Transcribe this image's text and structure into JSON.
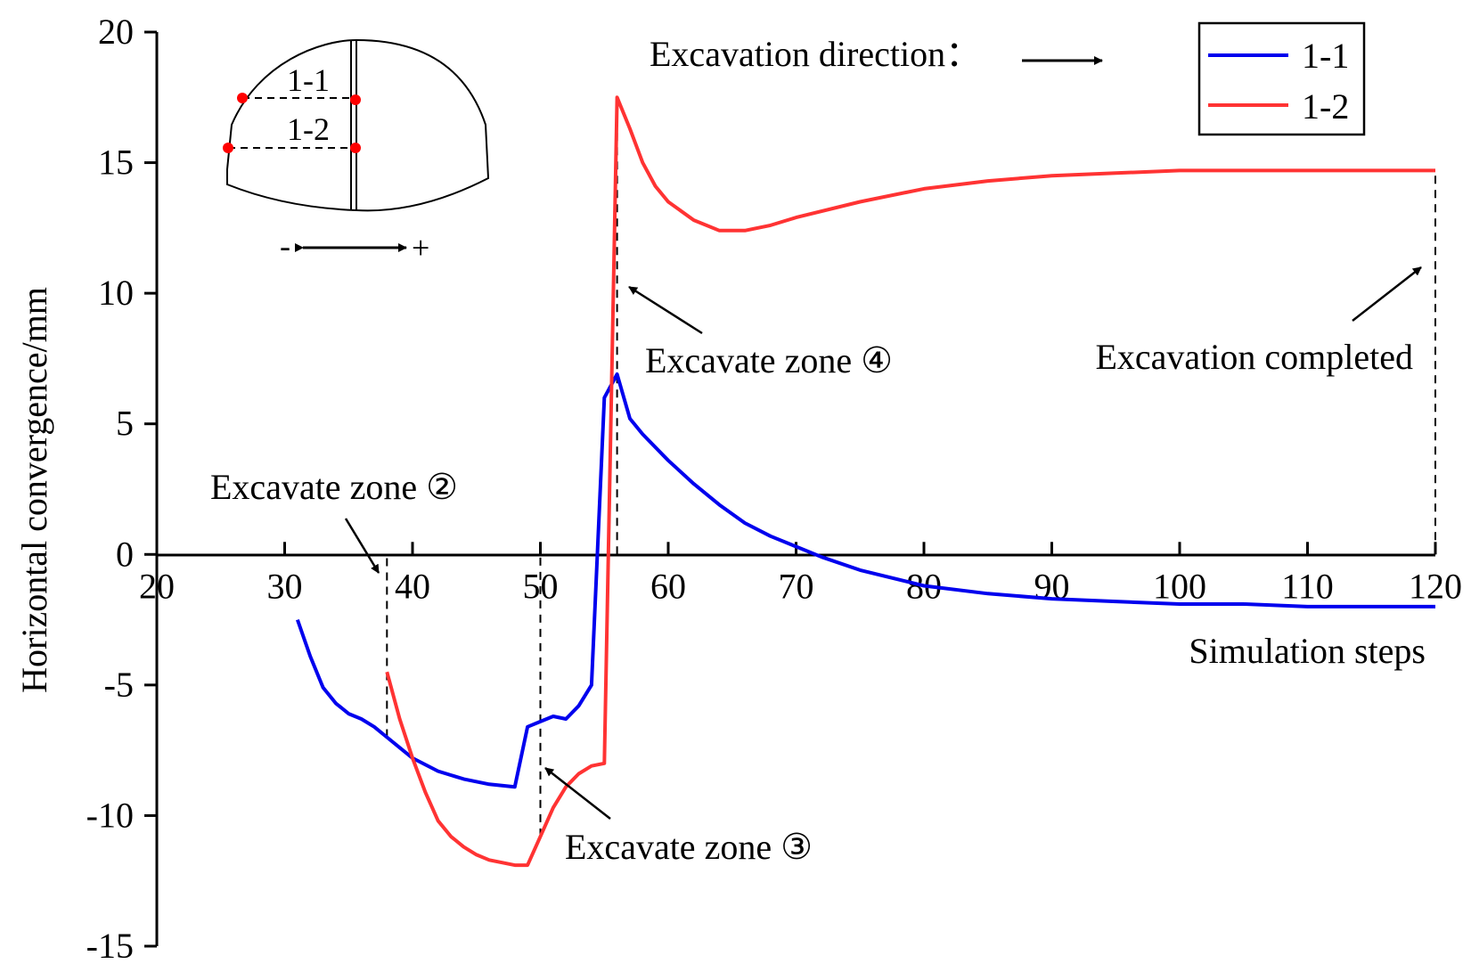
{
  "chart_data": {
    "type": "line",
    "title": "",
    "xlabel": "Simulation steps",
    "ylabel": "Horizontal convergence/mm",
    "xlim": [
      20,
      120
    ],
    "ylim": [
      -15,
      20
    ],
    "xticks": [
      20,
      30,
      40,
      50,
      60,
      70,
      80,
      90,
      100,
      110,
      120
    ],
    "yticks": [
      20,
      15,
      10,
      5,
      0,
      -5,
      -10,
      -15
    ],
    "xtick_labels": [
      "20",
      "30",
      "40",
      "50",
      "60",
      "70",
      "80",
      "90",
      "100",
      "110",
      "120"
    ],
    "ytick_labels": [
      "20",
      "15",
      "10",
      "5",
      "0",
      "-5",
      "-10",
      "-15"
    ],
    "grid": false,
    "legend_position": "top-right",
    "series": [
      {
        "name": "1-1",
        "color": "#0000ee",
        "x": [
          31,
          32,
          33,
          34,
          35,
          36,
          37,
          38,
          39,
          40,
          42,
          44,
          46,
          48,
          49,
          50,
          51,
          52,
          53,
          54,
          55,
          56,
          57,
          58,
          60,
          62,
          64,
          66,
          68,
          70,
          72,
          75,
          80,
          85,
          90,
          95,
          100,
          105,
          110,
          115,
          120
        ],
        "y": [
          -2.5,
          -3.9,
          -5.1,
          -5.7,
          -6.1,
          -6.3,
          -6.6,
          -7.0,
          -7.4,
          -7.8,
          -8.3,
          -8.6,
          -8.8,
          -8.9,
          -6.6,
          -6.4,
          -6.2,
          -6.3,
          -5.8,
          -5.0,
          6.0,
          6.9,
          5.2,
          4.6,
          3.6,
          2.7,
          1.9,
          1.2,
          0.7,
          0.3,
          -0.1,
          -0.6,
          -1.2,
          -1.5,
          -1.7,
          -1.8,
          -1.9,
          -1.9,
          -2.0,
          -2.0,
          -2.0
        ]
      },
      {
        "name": "1-2",
        "color": "#ff3333",
        "x": [
          38,
          39,
          40,
          41,
          42,
          43,
          44,
          45,
          46,
          47,
          48,
          49,
          50,
          51,
          52,
          53,
          54,
          55,
          56,
          57,
          58,
          59,
          60,
          62,
          64,
          66,
          68,
          70,
          75,
          80,
          85,
          90,
          95,
          100,
          105,
          110,
          115,
          120
        ],
        "y": [
          -4.5,
          -6.3,
          -7.8,
          -9.1,
          -10.2,
          -10.8,
          -11.2,
          -11.5,
          -11.7,
          -11.8,
          -11.9,
          -11.9,
          -10.8,
          -9.7,
          -8.9,
          -8.4,
          -8.1,
          -8.0,
          17.5,
          16.3,
          15.0,
          14.1,
          13.5,
          12.8,
          12.4,
          12.4,
          12.6,
          12.9,
          13.5,
          14.0,
          14.3,
          14.5,
          14.6,
          14.7,
          14.7,
          14.7,
          14.7,
          14.7
        ]
      }
    ],
    "reference_lines": [
      {
        "x": 38,
        "y_from": -7.0,
        "y_to": 0
      },
      {
        "x": 50,
        "y_from": -10.8,
        "y_to": 0
      },
      {
        "x": 56,
        "y_from": 0,
        "y_to": 17.5
      },
      {
        "x": 120,
        "y_from": 0,
        "y_to": 14.7
      }
    ],
    "annotations": [
      {
        "text": "Excavate zone ②",
        "target_x": 38,
        "target_y": 0
      },
      {
        "text": "Excavate zone ③",
        "target_x": 50,
        "target_y": -8.4
      },
      {
        "text": "Excavate zone ④",
        "target_x": 56,
        "target_y": 10.5
      },
      {
        "text": "Excavation completed",
        "target_x": 120,
        "target_y": 11.1
      },
      {
        "text": "Excavation direction："
      }
    ],
    "inset": {
      "labels": [
        "1-1",
        "1-2"
      ],
      "sign_minus": "-",
      "sign_plus": "+"
    }
  }
}
